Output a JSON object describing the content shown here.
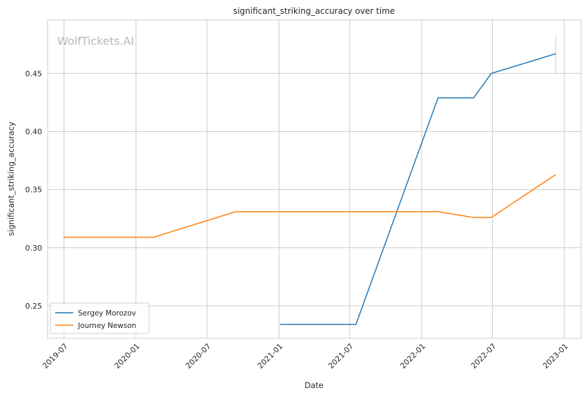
{
  "chart_data": {
    "type": "line",
    "title": "significant_striking_accuracy over time",
    "xlabel": "Date",
    "ylabel": "significant_striking_accuracy",
    "watermark": "WolfTickets.AI",
    "x_ticks": [
      "2019-07",
      "2020-01",
      "2020-07",
      "2021-01",
      "2021-07",
      "2022-01",
      "2022-07",
      "2023-01"
    ],
    "y_ticks": [
      "0.25",
      "0.30",
      "0.35",
      "0.40",
      "0.45"
    ],
    "xlim": [
      "2019-05-20",
      "2023-02-13"
    ],
    "ylim": [
      0.222,
      0.496
    ],
    "grid": true,
    "legend_position": "lower-left",
    "series": [
      {
        "name": "Sergey Morozov",
        "color": "#1f77b4",
        "x": [
          "2021-01-04",
          "2021-07-17",
          "2022-02-12",
          "2022-05-14",
          "2022-06-28",
          "2022-12-10"
        ],
        "y": [
          0.234,
          0.234,
          0.429,
          0.429,
          0.45,
          0.467
        ]
      },
      {
        "name": "Journey Newson",
        "color": "#ff7f0e",
        "x": [
          "2019-06-29",
          "2020-02-15",
          "2020-09-12",
          "2022-02-12",
          "2022-05-14",
          "2022-06-28",
          "2022-12-10"
        ],
        "y": [
          0.309,
          0.309,
          0.331,
          0.331,
          0.326,
          0.326,
          0.363
        ]
      }
    ],
    "annotation_line": {
      "x": "2022-12-10",
      "y": [
        0.45,
        0.483
      ],
      "color": "#a6d4ec"
    }
  }
}
